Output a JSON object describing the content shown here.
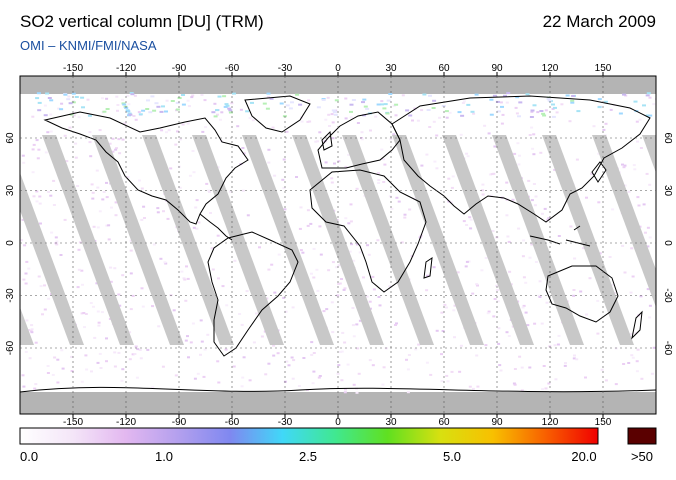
{
  "header": {
    "title": "SO2 vertical column [DU] (TRM)",
    "date": "22 March 2009",
    "subtitle": "OMI  –  KNMI/FMI/NASA"
  },
  "axes": {
    "lon_ticks": [
      "-150",
      "-120",
      "-90",
      "-60",
      "-30",
      "0",
      "30",
      "60",
      "90",
      "120",
      "150"
    ],
    "lat_ticks": [
      "60",
      "30",
      "0",
      "-30",
      "-60"
    ]
  },
  "colorbar": {
    "labels": [
      "0.0",
      "1.0",
      "2.5",
      "5.0",
      "20.0"
    ],
    "overflow_label": ">50",
    "overflow_color": "#5a0000",
    "stops": [
      "#ffffff",
      "#f4e6f8",
      "#e3b8f0",
      "#b4a0ee",
      "#7f88f0",
      "#40d8f8",
      "#40e890",
      "#60e020",
      "#d8e010",
      "#f8c000",
      "#f86000",
      "#f00000"
    ]
  },
  "colors": {
    "gap_swath": "#c8c8c8",
    "no_data": "#b4b4b4",
    "coast": "#000000",
    "subtitle": "#1a4fa0"
  }
}
